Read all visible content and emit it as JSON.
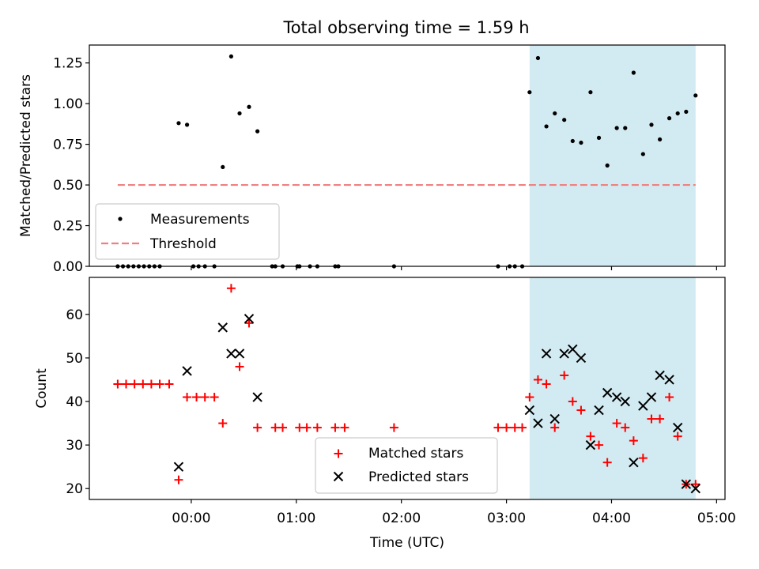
{
  "figure": {
    "suptitle": "Total observing time = 1.59 h",
    "xlabel": "Time (UTC)",
    "x_ticks": [
      "00:00",
      "01:00",
      "02:00",
      "03:00",
      "04:00",
      "05:00"
    ],
    "x_tick_hours": [
      0,
      1,
      2,
      3,
      4,
      5
    ],
    "xlim_hours": [
      -0.97,
      5.08
    ],
    "highlight_span_hours": [
      3.22,
      4.8
    ],
    "highlight_color": "#add8e6"
  },
  "chart_data": [
    {
      "type": "scatter",
      "title": "",
      "xlabel": "",
      "ylabel": "Matched/Predicted stars",
      "ylim": [
        0,
        1.36
      ],
      "yticks": [
        "0.00",
        "0.25",
        "0.50",
        "0.75",
        "1.00",
        "1.25"
      ],
      "ytick_values": [
        0,
        0.25,
        0.5,
        0.75,
        1.0,
        1.25
      ],
      "legend": [
        "Measurements",
        "Threshold"
      ],
      "legend_loc": "lower left",
      "grid": false,
      "threshold": {
        "name": "Threshold",
        "y": 0.5,
        "x_range": [
          -0.7,
          4.8
        ],
        "color": "#f08080"
      },
      "series": [
        {
          "name": "Measurements",
          "marker": "dot",
          "color": "#000000",
          "points": [
            [
              -0.7,
              0.0
            ],
            [
              -0.65,
              0.0
            ],
            [
              -0.6,
              0.0
            ],
            [
              -0.55,
              0.0
            ],
            [
              -0.5,
              0.0
            ],
            [
              -0.45,
              0.0
            ],
            [
              -0.4,
              0.0
            ],
            [
              -0.35,
              0.0
            ],
            [
              -0.3,
              0.0
            ],
            [
              -0.12,
              0.88
            ],
            [
              -0.04,
              0.87
            ],
            [
              0.02,
              0.0
            ],
            [
              0.07,
              0.0
            ],
            [
              0.13,
              0.0
            ],
            [
              0.22,
              0.0
            ],
            [
              0.3,
              0.61
            ],
            [
              0.38,
              1.29
            ],
            [
              0.46,
              0.94
            ],
            [
              0.55,
              0.98
            ],
            [
              0.63,
              0.83
            ],
            [
              0.77,
              0.0
            ],
            [
              0.8,
              0.0
            ],
            [
              0.87,
              0.0
            ],
            [
              1.01,
              0.0
            ],
            [
              1.03,
              0.0
            ],
            [
              1.13,
              0.0
            ],
            [
              1.2,
              0.0
            ],
            [
              1.37,
              0.0
            ],
            [
              1.4,
              0.0
            ],
            [
              1.93,
              0.0
            ],
            [
              2.92,
              0.0
            ],
            [
              3.03,
              0.0
            ],
            [
              3.08,
              0.0
            ],
            [
              3.15,
              0.0
            ],
            [
              3.22,
              1.07
            ],
            [
              3.3,
              1.28
            ],
            [
              3.38,
              0.86
            ],
            [
              3.46,
              0.94
            ],
            [
              3.55,
              0.9
            ],
            [
              3.63,
              0.77
            ],
            [
              3.71,
              0.76
            ],
            [
              3.8,
              1.07
            ],
            [
              3.88,
              0.79
            ],
            [
              3.96,
              0.62
            ],
            [
              4.05,
              0.85
            ],
            [
              4.13,
              0.85
            ],
            [
              4.21,
              1.19
            ],
            [
              4.3,
              0.69
            ],
            [
              4.38,
              0.87
            ],
            [
              4.46,
              0.78
            ],
            [
              4.55,
              0.91
            ],
            [
              4.63,
              0.94
            ],
            [
              4.71,
              0.95
            ],
            [
              4.8,
              1.05
            ]
          ]
        }
      ]
    },
    {
      "type": "scatter",
      "title": "",
      "xlabel": "Time (UTC)",
      "ylabel": "Count",
      "ylim": [
        17.5,
        68.5
      ],
      "yticks": [
        "20",
        "30",
        "40",
        "50",
        "60"
      ],
      "ytick_values": [
        20,
        30,
        40,
        50,
        60
      ],
      "legend": [
        "Matched stars",
        "Predicted stars"
      ],
      "legend_loc": "lower center",
      "grid": false,
      "series": [
        {
          "name": "Matched stars",
          "marker": "plus",
          "color": "#ff0000",
          "points": [
            [
              -0.7,
              44
            ],
            [
              -0.62,
              44
            ],
            [
              -0.54,
              44
            ],
            [
              -0.46,
              44
            ],
            [
              -0.38,
              44
            ],
            [
              -0.3,
              44
            ],
            [
              -0.21,
              44
            ],
            [
              -0.12,
              22
            ],
            [
              -0.04,
              41
            ],
            [
              0.05,
              41
            ],
            [
              0.13,
              41
            ],
            [
              0.22,
              41
            ],
            [
              0.3,
              35
            ],
            [
              0.38,
              66
            ],
            [
              0.46,
              48
            ],
            [
              0.55,
              58
            ],
            [
              0.63,
              34
            ],
            [
              0.8,
              34
            ],
            [
              0.87,
              34
            ],
            [
              1.03,
              34
            ],
            [
              1.1,
              34
            ],
            [
              1.2,
              34
            ],
            [
              1.37,
              34
            ],
            [
              1.46,
              34
            ],
            [
              1.93,
              34
            ],
            [
              2.92,
              34
            ],
            [
              3.0,
              34
            ],
            [
              3.08,
              34
            ],
            [
              3.15,
              34
            ],
            [
              3.22,
              41
            ],
            [
              3.3,
              45
            ],
            [
              3.38,
              44
            ],
            [
              3.46,
              34
            ],
            [
              3.55,
              46
            ],
            [
              3.63,
              40
            ],
            [
              3.71,
              38
            ],
            [
              3.8,
              32
            ],
            [
              3.88,
              30
            ],
            [
              3.96,
              26
            ],
            [
              4.05,
              35
            ],
            [
              4.13,
              34
            ],
            [
              4.21,
              31
            ],
            [
              4.3,
              27
            ],
            [
              4.38,
              36
            ],
            [
              4.46,
              36
            ],
            [
              4.55,
              41
            ],
            [
              4.63,
              32
            ],
            [
              4.71,
              21
            ],
            [
              4.8,
              21
            ]
          ]
        },
        {
          "name": "Predicted stars",
          "marker": "x",
          "color": "#000000",
          "points": [
            [
              -0.12,
              25
            ],
            [
              -0.04,
              47
            ],
            [
              0.3,
              57
            ],
            [
              0.38,
              51
            ],
            [
              0.46,
              51
            ],
            [
              0.55,
              59
            ],
            [
              0.63,
              41
            ],
            [
              3.22,
              38
            ],
            [
              3.3,
              35
            ],
            [
              3.38,
              51
            ],
            [
              3.46,
              36
            ],
            [
              3.55,
              51
            ],
            [
              3.63,
              52
            ],
            [
              3.71,
              50
            ],
            [
              3.8,
              30
            ],
            [
              3.88,
              38
            ],
            [
              3.96,
              42
            ],
            [
              4.05,
              41
            ],
            [
              4.13,
              40
            ],
            [
              4.21,
              26
            ],
            [
              4.3,
              39
            ],
            [
              4.38,
              41
            ],
            [
              4.46,
              46
            ],
            [
              4.55,
              45
            ],
            [
              4.63,
              34
            ],
            [
              4.71,
              21
            ],
            [
              4.8,
              20
            ]
          ]
        }
      ]
    }
  ]
}
